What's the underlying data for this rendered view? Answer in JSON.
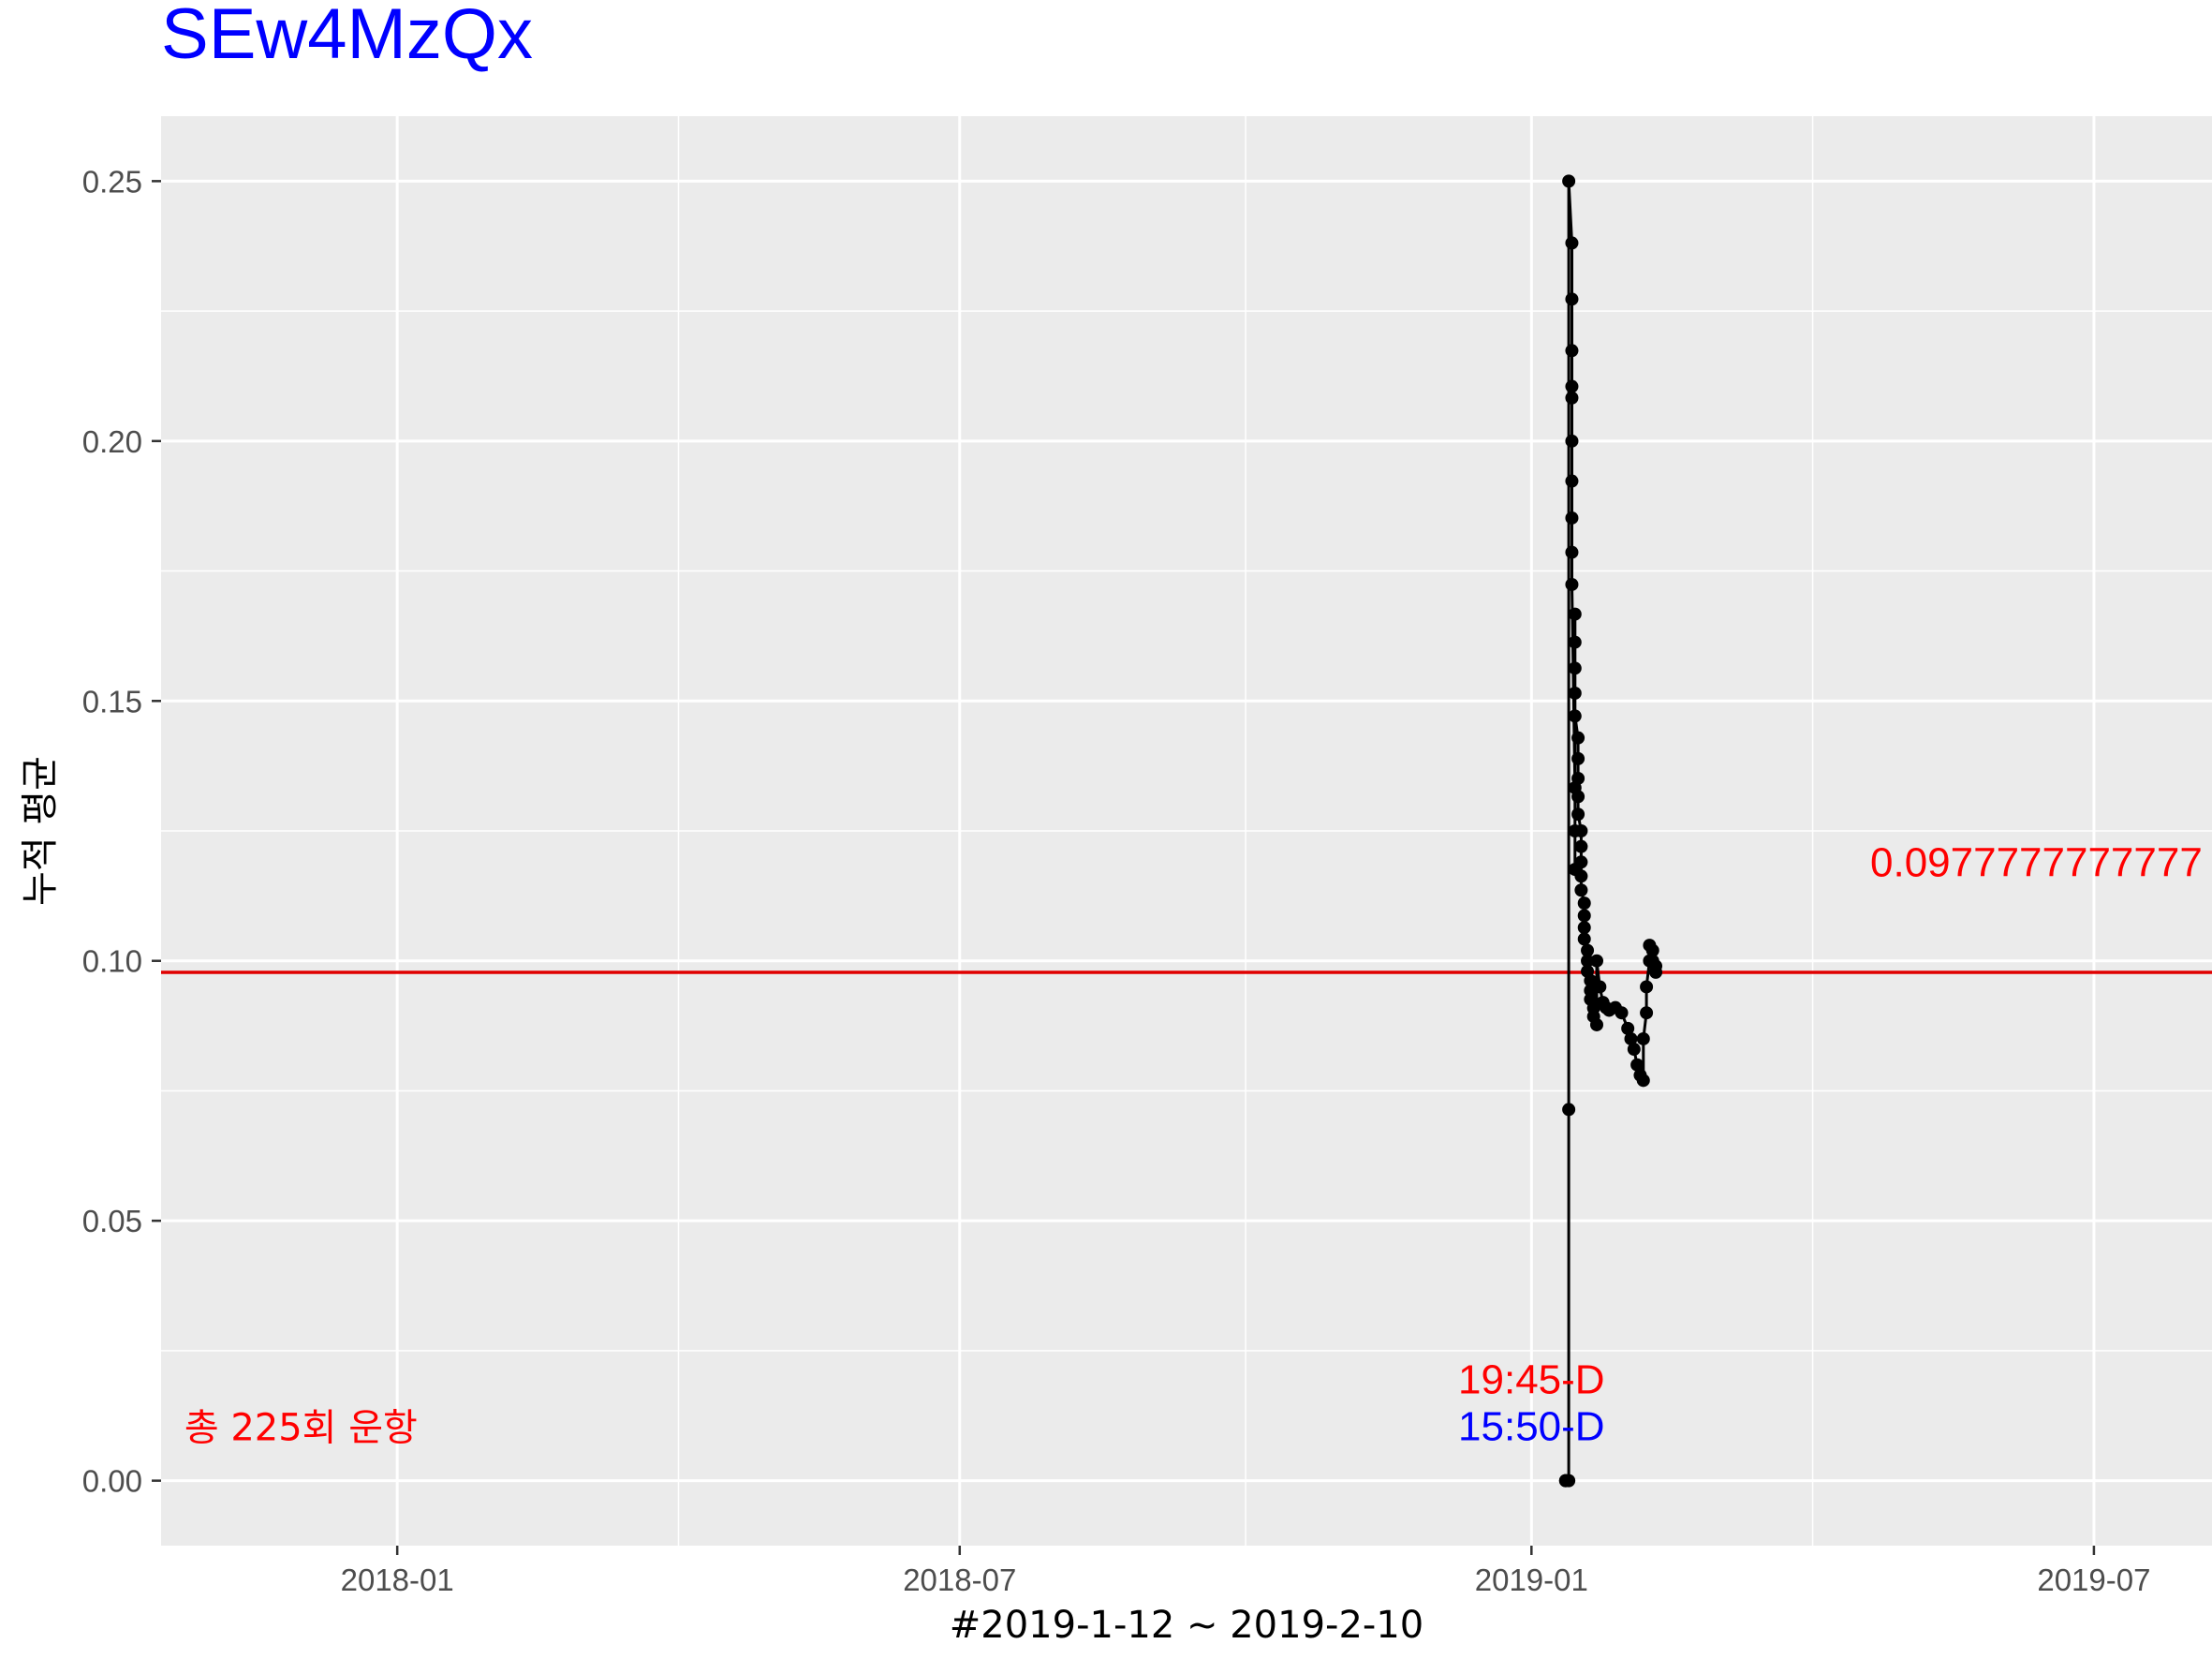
{
  "chart_data": {
    "type": "line",
    "title": "SEw4MzQx",
    "xlabel": "#2019-1-12 ~ 2019-2-10",
    "ylabel": "누적 평균",
    "x_axis": {
      "type": "date",
      "min": "2017-10-17",
      "max": "2019-08-08",
      "ticks": [
        "2018-01-01",
        "2018-07-01",
        "2019-01-01",
        "2019-07-01"
      ],
      "tick_labels": [
        "2018-01",
        "2018-07",
        "2019-01",
        "2019-07"
      ]
    },
    "y_axis": {
      "min": -0.0125,
      "max": 0.2625,
      "ticks": [
        0.0,
        0.05,
        0.1,
        0.15,
        0.2,
        0.25
      ],
      "tick_labels": [
        "0.00",
        "0.05",
        "0.10",
        "0.15",
        "0.20",
        "0.25"
      ]
    },
    "grid": true,
    "colors": {
      "line": "#000000",
      "mean_line": "#e00000",
      "panel": "#ebebeb",
      "grid": "#ffffff"
    },
    "series": [
      {
        "name": "누적 평균",
        "x": [
          "2019-01-12",
          "2019-01-12",
          "2019-01-13",
          "2019-01-13",
          "2019-01-13",
          "2019-01-14",
          "2019-01-14",
          "2019-01-14",
          "2019-01-14",
          "2019-01-14",
          "2019-01-14",
          "2019-01-14",
          "2019-01-14",
          "2019-01-14",
          "2019-01-14",
          "2019-01-15",
          "2019-01-15",
          "2019-01-15",
          "2019-01-15",
          "2019-01-15",
          "2019-01-15",
          "2019-01-15",
          "2019-01-15",
          "2019-01-16",
          "2019-01-16",
          "2019-01-16",
          "2019-01-16",
          "2019-01-16",
          "2019-01-17",
          "2019-01-17",
          "2019-01-17",
          "2019-01-17",
          "2019-01-17",
          "2019-01-18",
          "2019-01-18",
          "2019-01-18",
          "2019-01-18",
          "2019-01-19",
          "2019-01-19",
          "2019-01-19",
          "2019-01-20",
          "2019-01-20",
          "2019-01-20",
          "2019-01-21",
          "2019-01-21",
          "2019-01-22",
          "2019-01-22",
          "2019-01-23",
          "2019-01-24",
          "2019-01-25",
          "2019-01-26",
          "2019-01-28",
          "2019-01-30",
          "2019-02-01",
          "2019-02-02",
          "2019-02-03",
          "2019-02-04",
          "2019-02-05",
          "2019-02-06",
          "2019-02-06",
          "2019-02-07",
          "2019-02-07",
          "2019-02-08",
          "2019-02-08",
          "2019-02-09",
          "2019-02-09",
          "2019-02-10",
          "2019-02-10"
        ],
        "y": [
          0.0,
          0.0,
          0.0,
          0.0714,
          0.25,
          0.2381,
          0.2273,
          0.2174,
          0.2105,
          0.2083,
          0.2,
          0.1923,
          0.1852,
          0.1786,
          0.1724,
          0.1333,
          0.125,
          0.1176,
          0.1667,
          0.1613,
          0.1563,
          0.1515,
          0.1471,
          0.1429,
          0.1389,
          0.1351,
          0.1316,
          0.1282,
          0.125,
          0.122,
          0.119,
          0.1163,
          0.1136,
          0.1111,
          0.1087,
          0.1064,
          0.1042,
          0.102,
          0.1,
          0.098,
          0.0962,
          0.0943,
          0.0926,
          0.0909,
          0.0893,
          0.0877,
          0.1,
          0.095,
          0.092,
          0.091,
          0.0905,
          0.091,
          0.09,
          0.087,
          0.085,
          0.083,
          0.08,
          0.078,
          0.077,
          0.085,
          0.09,
          0.095,
          0.1,
          0.103,
          0.102,
          0.1,
          0.099,
          0.0978
        ]
      }
    ],
    "mean_line": {
      "value": 0.0977777777777778,
      "label": "0.0977777777777"
    },
    "annotations": {
      "total_flights": "총 225회 운항",
      "time_red": "19:45-D",
      "time_blue": "15:50-D"
    }
  }
}
